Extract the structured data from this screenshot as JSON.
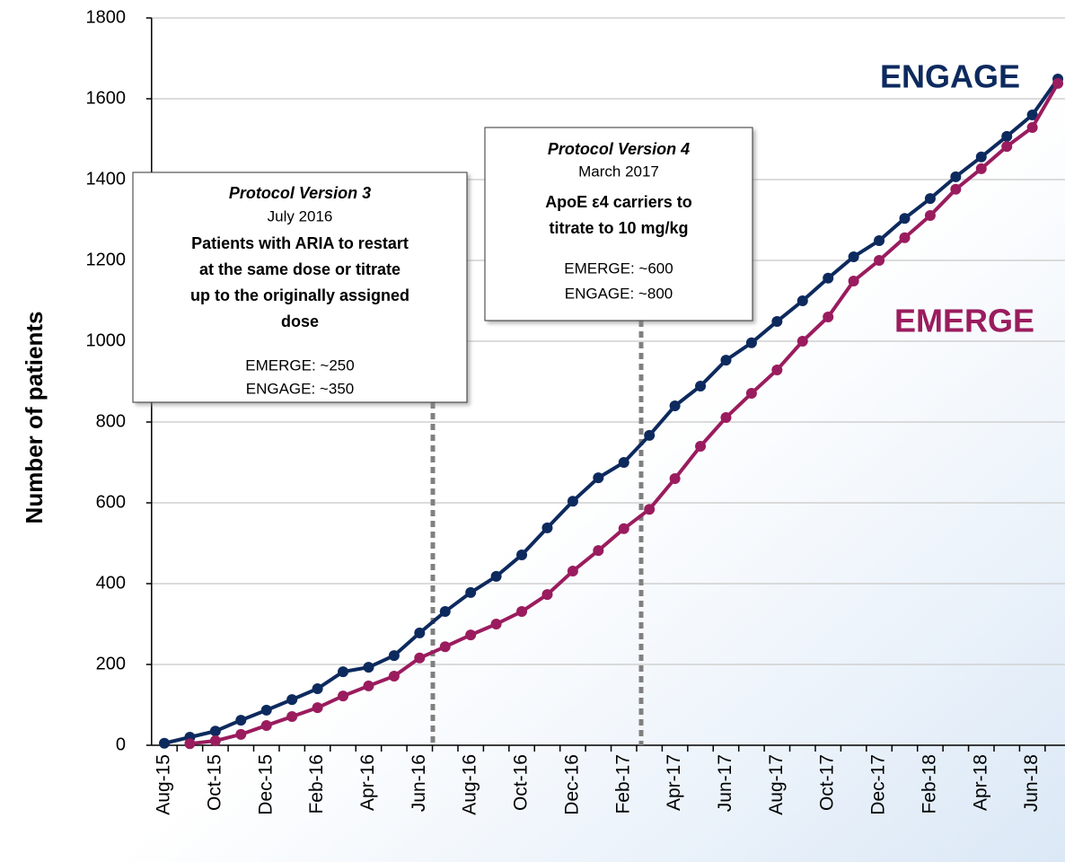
{
  "chart_data": {
    "type": "line",
    "y_label": "Number of patients",
    "categories": [
      "Aug-15",
      null,
      "Oct-15",
      null,
      "Dec-15",
      null,
      "Feb-16",
      null,
      "Apr-16",
      null,
      "Jun-16",
      null,
      "Aug-16",
      null,
      "Oct-16",
      null,
      "Dec-16",
      null,
      "Feb-17",
      null,
      "Apr-17",
      null,
      "Jun-17",
      null,
      "Aug-17",
      null,
      "Oct-17",
      null,
      "Dec-17",
      null,
      "Feb-18",
      null,
      "Apr-18",
      null,
      "Jun-18",
      null
    ],
    "series": [
      {
        "name": "ENGAGE",
        "color": "#0d2a5e",
        "values": [
          5,
          20,
          35,
          62,
          87,
          113,
          140,
          182,
          193,
          222,
          278,
          331,
          378,
          418,
          471,
          538,
          604,
          662,
          700,
          767,
          840,
          889,
          953,
          996,
          1049,
          1100,
          1156,
          1209,
          1249,
          1304,
          1353,
          1407,
          1456,
          1507,
          1560,
          1649
        ]
      },
      {
        "name": "EMERGE",
        "color": "#9a1c5e",
        "values": [
          null,
          4,
          11,
          27,
          49,
          71,
          93,
          122,
          147,
          171,
          216,
          244,
          273,
          300,
          331,
          373,
          431,
          482,
          536,
          584,
          660,
          740,
          811,
          871,
          929,
          1000,
          1060,
          1149,
          1200,
          1256,
          1311,
          1376,
          1427,
          1482,
          1529,
          1638
        ]
      }
    ],
    "ylim": [
      0,
      1800
    ],
    "yticks": [
      0,
      200,
      400,
      600,
      800,
      1000,
      1200,
      1400,
      1600,
      1800
    ],
    "grid": true,
    "annotations": [
      {
        "title": "Protocol Version 3",
        "date": "July 2016",
        "text": [
          "Patients with ARIA to restart",
          "at the same dose or titrate",
          "up to the originally assigned",
          "dose"
        ],
        "counts": [
          "EMERGE: ~250",
          "ENGAGE: ~350"
        ]
      },
      {
        "title": "Protocol Version 4",
        "date": "March 2017",
        "text": [
          "ApoE ε4 carriers to",
          "titrate to 10 mg/kg"
        ],
        "counts": [
          "EMERGE: ~600",
          "ENGAGE: ~800"
        ]
      }
    ]
  }
}
